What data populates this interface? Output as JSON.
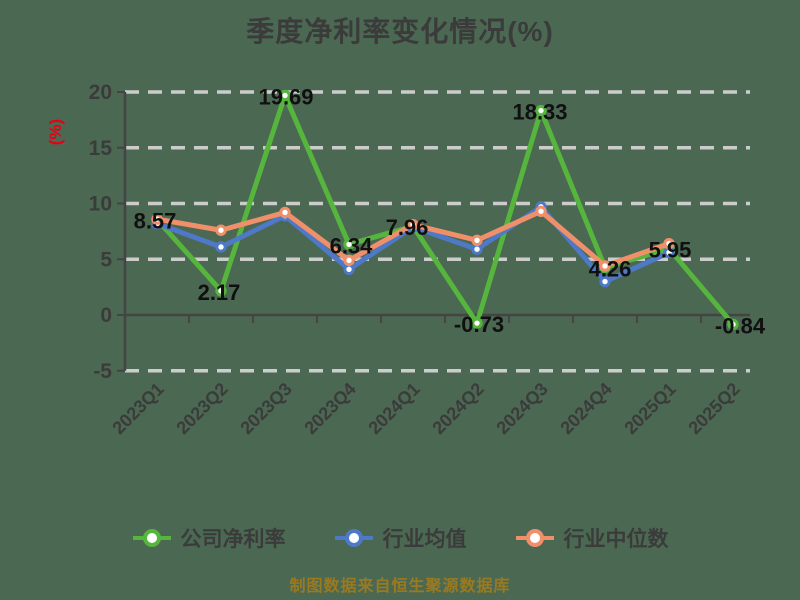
{
  "page": {
    "background": "#4b6852"
  },
  "chart_data": {
    "type": "line",
    "title": "季度净利率变化情况(%)",
    "ylabel": "(%)",
    "footer": "制图数据来自恒生聚源数据库",
    "categories": [
      "2023Q1",
      "2023Q2",
      "2023Q3",
      "2023Q4",
      "2024Q1",
      "2024Q2",
      "2024Q3",
      "2024Q4",
      "2025Q1",
      "2025Q2"
    ],
    "yticks": [
      20,
      15,
      10,
      5,
      0,
      -5
    ],
    "ylim": [
      -5,
      20
    ],
    "grid": true,
    "grid_style": "dashed",
    "legend_position": "bottom",
    "series": [
      {
        "name": "公司净利率",
        "color": "#55b53c",
        "show_labels": true,
        "values": [
          8.57,
          2.17,
          19.69,
          6.34,
          7.96,
          -0.73,
          18.33,
          4.26,
          5.95,
          -0.84
        ]
      },
      {
        "name": "行业均值",
        "color": "#4d79c8",
        "show_labels": false,
        "values": [
          8.2,
          6.1,
          8.9,
          4.1,
          7.9,
          5.9,
          9.7,
          3.0,
          5.6,
          null
        ]
      },
      {
        "name": "行业中位数",
        "color": "#f0906a",
        "show_labels": false,
        "values": [
          8.6,
          7.6,
          9.2,
          4.9,
          8.1,
          6.7,
          9.3,
          4.4,
          6.4,
          null
        ]
      }
    ],
    "colors": {
      "title": "#3b3b3b",
      "tick_label": "#3b3b3b",
      "data_label": "#101010",
      "axis": "#444444",
      "grid": "#cccccc",
      "ylabel": "#e60012",
      "footer": "#9a7a20",
      "marker_fill": "#ffffff"
    }
  }
}
